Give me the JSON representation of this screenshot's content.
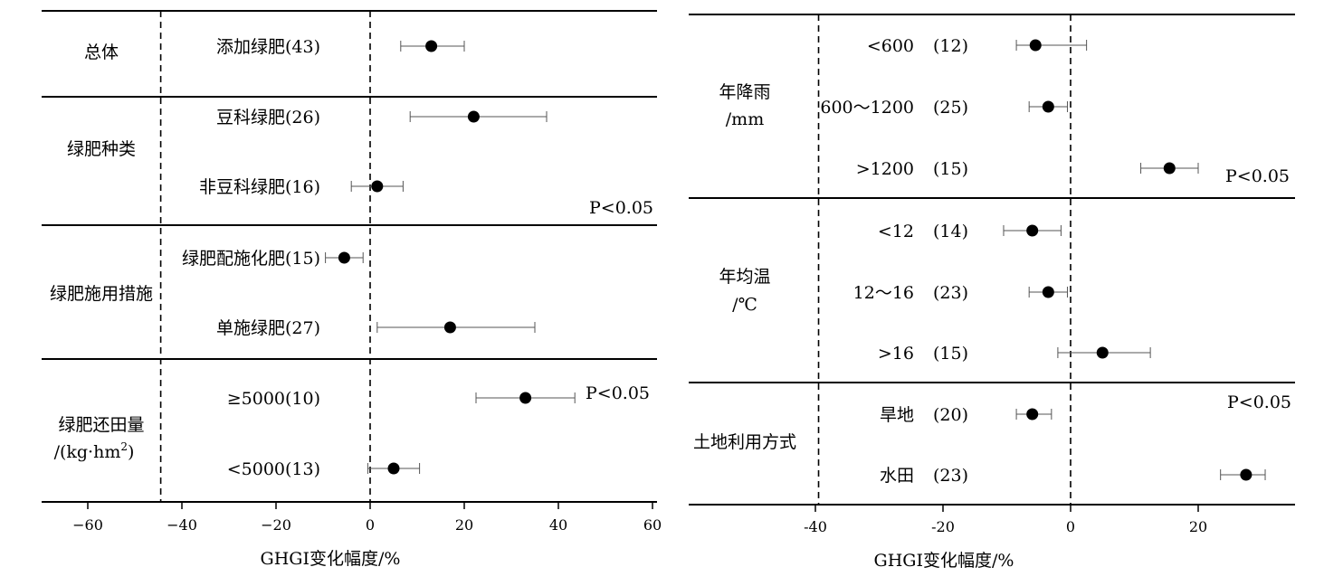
{
  "chart_data": [
    {
      "type": "forest",
      "xlabel": "GHGI变化幅度/%",
      "xlim": [
        -70,
        60
      ],
      "xticks": [
        -60,
        -40,
        -20,
        0,
        20,
        40,
        60
      ],
      "xtick_labels": [
        "−60",
        "−40",
        "−20",
        "0",
        "20",
        "40",
        "60"
      ],
      "reference_lines": [
        -44.5,
        0
      ],
      "groups": [
        {
          "label": "总体",
          "rows": [
            {
              "label": "添加绿肥(43)",
              "value": 13,
              "ci": [
                6.5,
                20
              ]
            }
          ]
        },
        {
          "label": "绿肥种类",
          "annotation": "P<0.05",
          "rows": [
            {
              "label": "豆科绿肥(26)",
              "value": 22,
              "ci": [
                8.5,
                37.5
              ]
            },
            {
              "label": "非豆科绿肥(16)",
              "value": 1.5,
              "ci": [
                -4,
                7
              ]
            }
          ]
        },
        {
          "label": "绿肥施用措施",
          "rows": [
            {
              "label": "绿肥配施化肥(15)",
              "value": -5.5,
              "ci": [
                -9.5,
                -1.5
              ]
            },
            {
              "label": "单施绿肥(27)",
              "value": 17,
              "ci": [
                1.5,
                35
              ]
            }
          ]
        },
        {
          "label": "绿肥还田量",
          "label_line2": "/(kg·hm",
          "label_sup": "2",
          "label_close": ")",
          "annotation": "P<0.05",
          "rows": [
            {
              "label": "≥5000(10)",
              "value": 33,
              "ci": [
                22.5,
                43.5
              ]
            },
            {
              "label": "<5000(13)",
              "value": 5,
              "ci": [
                -0.5,
                10.5
              ]
            }
          ]
        }
      ]
    },
    {
      "type": "forest",
      "xlabel": "GHGI变化幅度/%",
      "xlim": [
        -60,
        35
      ],
      "xticks": [
        -40,
        -20,
        0,
        20
      ],
      "xtick_labels": [
        "-40",
        "-20",
        "0",
        "20"
      ],
      "reference_lines": [
        -39.5,
        0
      ],
      "groups": [
        {
          "label": "年降雨",
          "label_line2": "/mm",
          "annotation": "P<0.05",
          "rows": [
            {
              "label": "<600",
              "n": "(12)",
              "value": -5.5,
              "ci": [
                -8.5,
                2.5
              ]
            },
            {
              "label": "600～1200",
              "n": "(25)",
              "value": -3.5,
              "ci": [
                -6.5,
                -0.5
              ]
            },
            {
              "label": ">1200",
              "n": "(15)",
              "value": 15.5,
              "ci": [
                11,
                20
              ]
            }
          ]
        },
        {
          "label": "年均温",
          "label_line2": "/℃",
          "rows": [
            {
              "label": "<12",
              "n": "(14)",
              "value": -6,
              "ci": [
                -10.5,
                -1.5
              ]
            },
            {
              "label": "12～16",
              "n": "(23)",
              "value": -3.5,
              "ci": [
                -6.5,
                -0.5
              ]
            },
            {
              "label": ">16",
              "n": "(15)",
              "value": 5,
              "ci": [
                -2,
                12.5
              ]
            }
          ]
        },
        {
          "label": "土地利用方式",
          "annotation": "P<0.05",
          "rows": [
            {
              "label": "旱地",
              "n": "(20)",
              "value": -6,
              "ci": [
                -8.5,
                -3
              ]
            },
            {
              "label": "水田",
              "n": "(23)",
              "value": 27.5,
              "ci": [
                23.5,
                30.5
              ]
            }
          ]
        }
      ]
    }
  ]
}
